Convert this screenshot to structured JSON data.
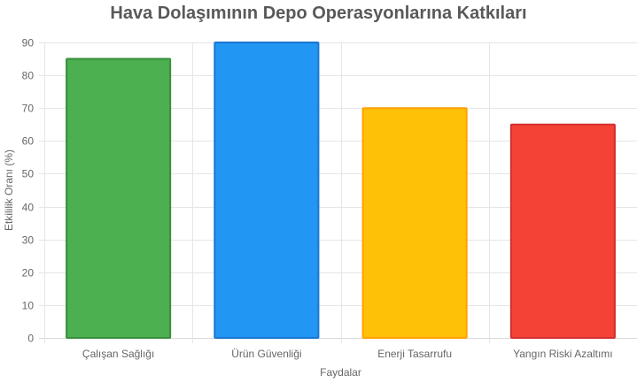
{
  "chart_data": {
    "type": "bar",
    "title": "Hava Dolaşımının Depo Operasyonlarına Katkıları",
    "xlabel": "Faydalar",
    "ylabel": "Etkililik Oranı (%)",
    "categories": [
      "Çalışan Sağlığı",
      "Ürün Güvenliği",
      "Enerji Tasarrufu",
      "Yangın Riski Azaltımı"
    ],
    "values": [
      85,
      90,
      70,
      65
    ],
    "colors": [
      "#4CAF50",
      "#2196F3",
      "#FFC107",
      "#F44336"
    ],
    "border_colors": [
      "#388E3C",
      "#1976D2",
      "#FFA000",
      "#D32F2F"
    ],
    "ylim": [
      0,
      90
    ],
    "yticks": [
      0,
      10,
      20,
      30,
      40,
      50,
      60,
      70,
      80,
      90
    ],
    "grid": true
  }
}
